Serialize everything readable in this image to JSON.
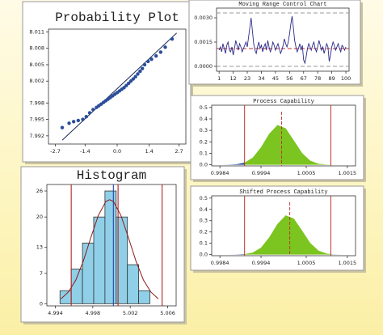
{
  "chart_data": [
    {
      "type": "scatter",
      "title": "Probability Plot",
      "color": "#2b4d9a",
      "x": [
        -2.4,
        -2.1,
        -1.9,
        -1.7,
        -1.5,
        -1.35,
        -1.2,
        -1.05,
        -0.9,
        -0.8,
        -0.7,
        -0.6,
        -0.5,
        -0.4,
        -0.3,
        -0.2,
        -0.1,
        0,
        0.1,
        0.2,
        0.3,
        0.4,
        0.5,
        0.6,
        0.7,
        0.8,
        0.9,
        1.0,
        1.1,
        1.2,
        1.35,
        1.5,
        1.7,
        1.9,
        2.1,
        2.4
      ],
      "y": [
        7.9935,
        7.9943,
        7.9946,
        7.9948,
        7.995,
        7.9955,
        7.9962,
        7.9968,
        7.9972,
        7.9975,
        7.9978,
        7.9981,
        7.9984,
        7.9987,
        7.999,
        7.9993,
        7.9996,
        7.9999,
        8.0002,
        8.0005,
        8.0008,
        8.0012,
        8.0016,
        8.002,
        8.0024,
        8.0028,
        8.0033,
        8.0038,
        8.0043,
        8.005,
        8.0056,
        8.006,
        8.0066,
        8.0073,
        8.0082,
        8.0097
      ],
      "fit": {
        "x": [
          -2.4,
          2.6
        ],
        "y": [
          7.9912,
          8.0108
        ]
      },
      "fit_color": "#1a2a55",
      "xlim": [
        -3,
        3
      ],
      "ylim": [
        7.9905,
        8.0115
      ],
      "xticks": [
        -2.7,
        -1.4,
        {
          "value": 0,
          "label": "0.0"
        },
        1.4,
        2.7
      ],
      "yticks": [
        7.992,
        7.995,
        7.998,
        8.002,
        8.005,
        8.008,
        8.011
      ]
    },
    {
      "type": "line",
      "title": "Moving Range Control Chart",
      "color": "#2a2a8a",
      "x": [
        1,
        2,
        3,
        4,
        5,
        6,
        7,
        8,
        9,
        10,
        11,
        12,
        13,
        14,
        15,
        16,
        17,
        18,
        19,
        20,
        21,
        22,
        23,
        24,
        25,
        26,
        27,
        28,
        29,
        30,
        31,
        32,
        33,
        34,
        35,
        36,
        37,
        38,
        39,
        40,
        41,
        42,
        43,
        44,
        45,
        46,
        47,
        48,
        49,
        50,
        51,
        52,
        53,
        54,
        55,
        56,
        57,
        58,
        59,
        60,
        61,
        62,
        63,
        64,
        65,
        66,
        67,
        68,
        69,
        70,
        71,
        72,
        73,
        74,
        75,
        76,
        77,
        78,
        79,
        80,
        81,
        82,
        83,
        84,
        85,
        86,
        87,
        88,
        89,
        90,
        91,
        92,
        93,
        94,
        95,
        96,
        97,
        98,
        99,
        100
      ],
      "values": [
        0.001,
        0.0012,
        0.0009,
        0.0014,
        0.0011,
        0.0008,
        0.0013,
        0.0015,
        0.001,
        0.0009,
        0.0012,
        0.0007,
        0.0011,
        0.0016,
        0.0013,
        0.001,
        0.0014,
        0.0012,
        0.0009,
        0.0011,
        0.0013,
        0.0015,
        0.0012,
        0.0018,
        0.0024,
        0.003,
        0.0022,
        0.0014,
        0.001,
        0.0008,
        0.0012,
        0.0015,
        0.0011,
        0.0013,
        0.0009,
        0.0012,
        0.0014,
        0.001,
        0.0016,
        0.0012,
        0.0009,
        0.0011,
        0.0015,
        0.0013,
        0.001,
        0.0012,
        0.0014,
        0.0011,
        0.0008,
        0.001,
        0.0013,
        0.0017,
        0.0014,
        0.0012,
        0.0015,
        0.002,
        0.0026,
        0.0031,
        0.0024,
        0.0016,
        0.0012,
        0.0009,
        0.0011,
        0.0014,
        0.001,
        0.0013,
        0.0004,
        0.0002,
        0.0006,
        0.0011,
        0.0014,
        0.0012,
        0.001,
        0.0013,
        0.0015,
        0.0011,
        0.0009,
        0.0012,
        0.0016,
        0.0013,
        0.001,
        0.0012,
        0.0008,
        0.0011,
        0.0014,
        0.0012,
        0.0003,
        0.0007,
        0.0012,
        0.0015,
        0.0013,
        0.001,
        0.0012,
        0.0014,
        0.0011,
        0.0009,
        0.0013,
        0.0012,
        0.001,
        0.0012
      ],
      "control_limits": [
        0,
        0.0011,
        0.0033
      ],
      "limit_colors": [
        "#999999",
        "#c0302a",
        "#999999"
      ],
      "xlim": [
        -1,
        102.5
      ],
      "ylim": [
        -0.0003,
        0.0036
      ],
      "xticks": [
        1,
        12,
        23,
        34,
        45,
        56,
        67,
        78,
        89,
        100
      ],
      "yticks": [
        {
          "value": 0,
          "label": "0.0000"
        },
        0.0015,
        {
          "value": 0.003,
          "label": "0.0030"
        }
      ]
    },
    {
      "type": "area",
      "title": "Process Capability",
      "fill": "#7cc41f",
      "tail_colors": [
        "#2c4f9f",
        "#86cfe8"
      ],
      "x": [
        0.9984,
        0.9986,
        0.9988,
        0.999,
        0.9992,
        0.9994,
        0.9996,
        0.9998,
        1.0,
        1.0002,
        1.0004,
        1.0006,
        1.0008,
        1.001,
        1.0012,
        1.0014
      ],
      "values": [
        0.0001,
        0.0006,
        0.0039,
        0.018,
        0.062,
        0.153,
        0.271,
        0.347,
        0.319,
        0.212,
        0.102,
        0.035,
        0.0088,
        0.0016,
        0.0002,
        0
      ],
      "limits": [
        0.999,
        1.0011
      ],
      "limit_color": "#c0302a",
      "center": 0.9999,
      "xlim": [
        0.9982,
        1.0017
      ],
      "ylim": [
        -0.01,
        0.52
      ],
      "xticks": [
        0.9984,
        0.9994,
        1.0005,
        1.0015
      ],
      "yticks": [
        {
          "value": 0,
          "label": "0.0"
        },
        0.1,
        0.2,
        0.3,
        0.4,
        0.5
      ]
    },
    {
      "type": "area",
      "title": "Shifted Process Capability",
      "fill": "#7cc41f",
      "tail_colors": [
        "#2c4f9f",
        "#86cfe8"
      ],
      "x": [
        0.9986,
        0.9988,
        0.999,
        0.9992,
        0.9994,
        0.9996,
        0.9998,
        1.0,
        1.0002,
        1.0004,
        1.0006,
        1.0008,
        1.001,
        1.0012,
        1.0014,
        1.0016
      ],
      "values": [
        0.0001,
        0.0006,
        0.0039,
        0.018,
        0.062,
        0.153,
        0.271,
        0.347,
        0.319,
        0.212,
        0.102,
        0.035,
        0.0088,
        0.0016,
        0.0002,
        0
      ],
      "limits": [
        0.999,
        1.0011
      ],
      "limit_color": "#c0302a",
      "center": 1.0001,
      "xlim": [
        0.9982,
        1.0017
      ],
      "ylim": [
        -0.01,
        0.52
      ],
      "xticks": [
        0.9984,
        0.9994,
        1.0005,
        1.0015
      ],
      "yticks": [
        {
          "value": 0,
          "label": "0.0"
        },
        0.1,
        0.2,
        0.3,
        0.4,
        0.5
      ]
    },
    {
      "type": "histogram",
      "title": "Histogram",
      "color": "#8fd0e8",
      "bins": [
        4.9945,
        4.9957,
        4.9969,
        4.9981,
        4.9993,
        5.0005,
        5.0017,
        5.0029,
        5.0041
      ],
      "values": [
        3,
        8,
        14,
        20,
        26,
        20,
        9,
        3
      ],
      "curve": {
        "x": [
          4.9946,
          4.9954,
          4.9962,
          4.997,
          4.9978,
          4.9986,
          4.9994,
          4.9998,
          5.0002,
          5.001,
          5.0018,
          5.0026,
          5.0034,
          5.0042,
          5.005
        ],
        "y": [
          1.1,
          2.7,
          5.5,
          9.9,
          15.3,
          20.4,
          23.6,
          24,
          23.6,
          20.4,
          15.3,
          9.9,
          5.5,
          2.7,
          1.1
        ]
      },
      "curve_color": "#8b1a1a",
      "limits": [
        4.9957,
        5.0007,
        5.0054
      ],
      "limit_color": "#b22222",
      "center": 5.0002,
      "center_color": "#2244aa",
      "xlim": [
        4.9931,
        5.0069
      ],
      "ylim": [
        -0.5,
        27.5
      ],
      "xticks": [
        4.994,
        4.998,
        5.002,
        5.006
      ],
      "yticks": [
        0,
        7,
        13,
        20,
        26
      ]
    }
  ]
}
